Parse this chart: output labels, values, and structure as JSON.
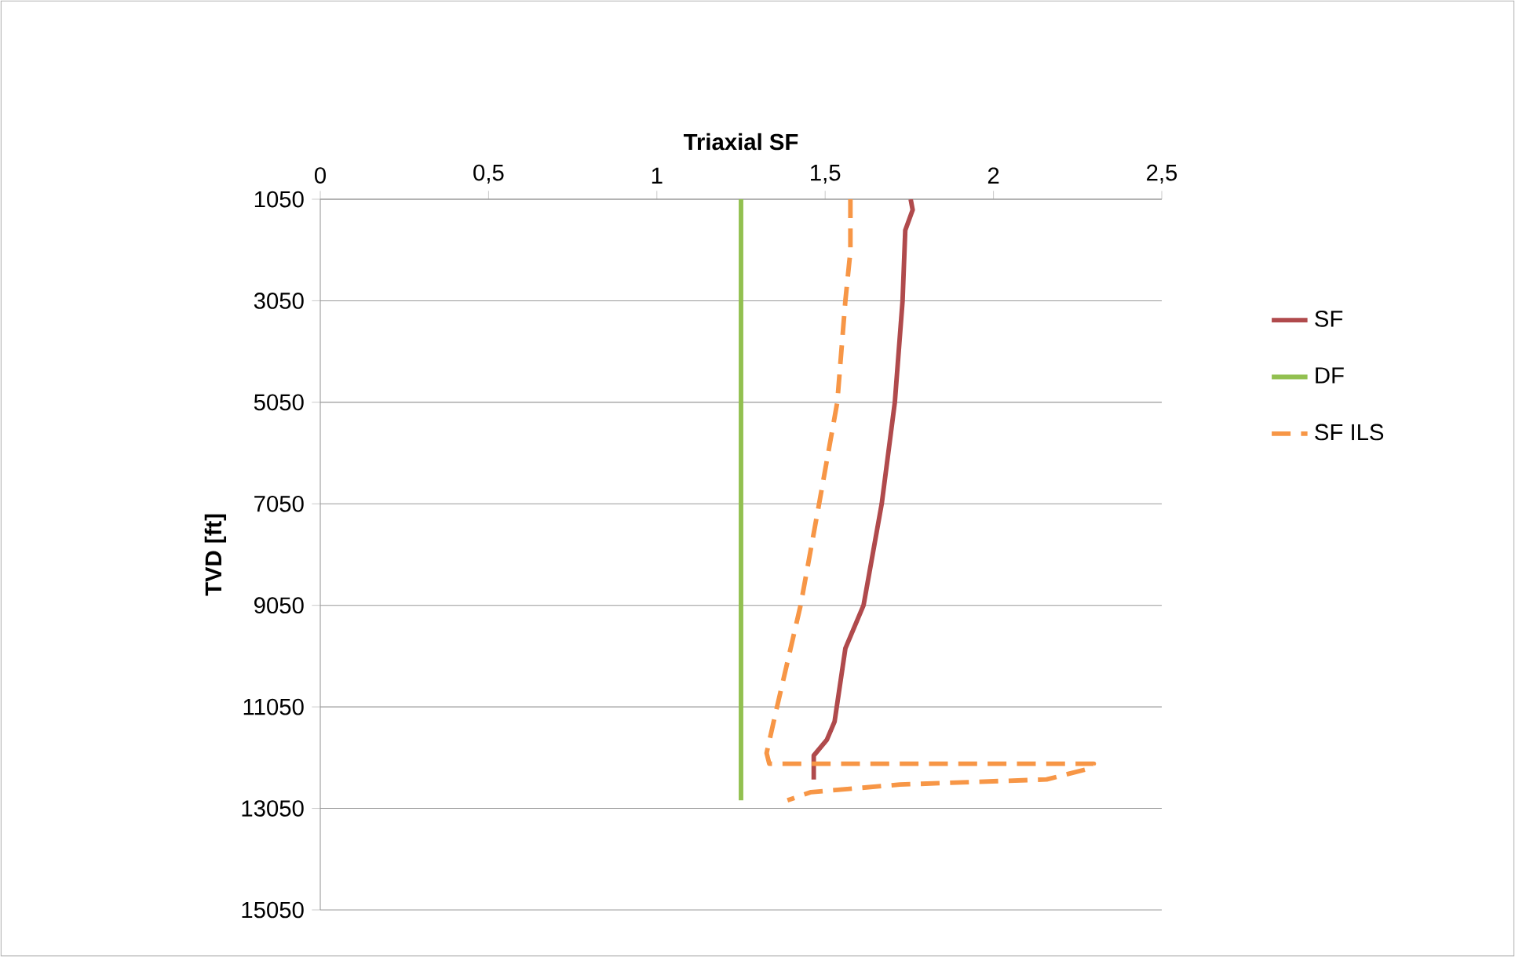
{
  "chart_data": {
    "type": "line",
    "xlabel": "Triaxial SF",
    "ylabel": "TVD [ft]",
    "xlim": [
      0,
      2.5
    ],
    "ylim": [
      15050,
      1050
    ],
    "xticks": [
      0,
      {
        "value": 0.5,
        "label": "0,5"
      },
      1,
      {
        "value": 1.5,
        "label": "1,5"
      },
      2,
      {
        "value": 2.5,
        "label": "2,5"
      }
    ],
    "yticks": [
      1050,
      3050,
      5050,
      7050,
      9050,
      11050,
      13050,
      15050
    ],
    "grid": "y",
    "legend": "right",
    "series": [
      {
        "name": "SF",
        "color": "#b04a4c",
        "x": [
          1.754,
          1.76,
          1.738,
          1.73,
          1.707,
          1.668,
          1.614,
          1.56,
          1.528,
          1.505,
          1.466,
          1.466
        ],
        "values": [
          1050,
          1260,
          1660,
          3050,
          5050,
          7050,
          9050,
          9900,
          11340,
          11700,
          12010,
          12480
        ]
      },
      {
        "name": "DF",
        "color": "#92c050",
        "x": [
          1.25,
          1.25
        ],
        "values": [
          1050,
          12890
        ]
      },
      {
        "name": "SF ILS",
        "color": "#f79646",
        "line_style": "dashed",
        "x": [
          1.575,
          1.575,
          1.56,
          1.536,
          1.482,
          1.427,
          1.357,
          1.326,
          1.334,
          2.298,
          2.282,
          2.158,
          1.722,
          1.458,
          1.388
        ],
        "values": [
          1050,
          2070,
          3050,
          5050,
          7050,
          9050,
          11050,
          11960,
          12170,
          12170,
          12270,
          12480,
          12580,
          12730,
          12890
        ]
      }
    ]
  }
}
